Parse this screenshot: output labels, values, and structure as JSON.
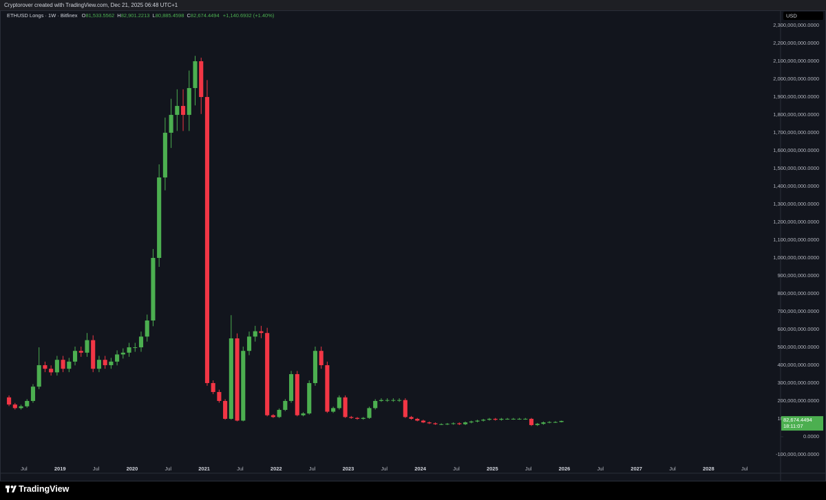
{
  "header": {
    "author_line": "Cryptorover created with TradingView.com, Dec 21, 2025 06:48 UTC+1"
  },
  "footer": {
    "brand": "TradingView"
  },
  "chart_data": {
    "type": "candlestick",
    "title": "ETHUSD Longs · 1W · Bitfinex",
    "ohlc_legend": {
      "o_key": "O",
      "o": "81,533.5562",
      "h_key": "H",
      "h": "82,901.2213",
      "l_key": "L",
      "l": "80,885.4598",
      "c_key": "C",
      "c": "82,674.4494",
      "change": "+1,140.6932 (+1.40%)"
    },
    "currency": "USD",
    "last_price_label": "82,674.4494",
    "countdown": "18:11:07",
    "up_color": "#4caf50",
    "down_color": "#f23645",
    "grid": false,
    "x": [
      "2018-04",
      "2018-05",
      "2018-06",
      "2018-07",
      "2018-08",
      "2018-09",
      "2018-10",
      "2018-11",
      "2018-12",
      "2019-01",
      "2019-02",
      "2019-03",
      "2019-04",
      "2019-05",
      "2019-06",
      "2019-07",
      "2019-08",
      "2019-09",
      "2019-10",
      "2019-11",
      "2019-12",
      "2020-01",
      "2020-02",
      "2020-03",
      "2020-04",
      "2020-05",
      "2020-06",
      "2020-07",
      "2020-08",
      "2020-09",
      "2020-10",
      "2020-11",
      "2020-12",
      "2021-01",
      "2021-02",
      "2021-03",
      "2021-04",
      "2021-05",
      "2021-06",
      "2021-07",
      "2021-08",
      "2021-09",
      "2021-10",
      "2021-11",
      "2021-12",
      "2022-01",
      "2022-02",
      "2022-03",
      "2022-04",
      "2022-05",
      "2022-06",
      "2022-07",
      "2022-08",
      "2022-09",
      "2022-10",
      "2022-11",
      "2022-12",
      "2023-01",
      "2023-02",
      "2023-03",
      "2023-04",
      "2023-05",
      "2023-06",
      "2023-07",
      "2023-08",
      "2023-09",
      "2023-10",
      "2023-11",
      "2023-12",
      "2024-01",
      "2024-02",
      "2024-03",
      "2024-04",
      "2024-05",
      "2024-06",
      "2024-07",
      "2024-08",
      "2024-09",
      "2024-10",
      "2024-11",
      "2024-12",
      "2025-01",
      "2025-02",
      "2025-03",
      "2025-04",
      "2025-05",
      "2025-06",
      "2025-07",
      "2025-08",
      "2025-09",
      "2025-10",
      "2025-11",
      "2025-12"
    ],
    "open": [
      220000000.0,
      180000000.0,
      160000000.0,
      170000000.0,
      200000000.0,
      280000000.0,
      400000000.0,
      380000000.0,
      360000000.0,
      430000000.0,
      380000000.0,
      420000000.0,
      480000000.0,
      470000000.0,
      540000000.0,
      380000000.0,
      430000000.0,
      400000000.0,
      420000000.0,
      460000000.0,
      470000000.0,
      500000000.0,
      500000000.0,
      560000000.0,
      650000000.0,
      1000000000.0,
      1450000000.0,
      1700000000.0,
      1800000000.0,
      1850000000.0,
      1800000000.0,
      1950000000.0,
      2100000000.0,
      1900000000.0,
      300000000.0,
      250000000.0,
      200000000.0,
      100000000.0,
      550000000.0,
      90000000.0,
      480000000.0,
      560000000.0,
      590000000.0,
      580000000.0,
      120000000.0,
      110000000.0,
      150000000.0,
      200000000.0,
      350000000.0,
      120000000.0,
      130000000.0,
      300000000.0,
      480000000.0,
      400000000.0,
      140000000.0,
      160000000.0,
      220000000.0,
      110000000.0,
      105000000.0,
      100000000.0,
      105000000.0,
      160000000.0,
      200000000.0,
      205000000.0,
      205000000.0,
      205000000.0,
      205000000.0,
      110000000.0,
      100000000.0,
      90000000.0,
      80000000.0,
      75000000.0,
      70000000.0,
      70000000.0,
      72000000.0,
      75000000.0,
      70000000.0,
      80000000.0,
      85000000.0,
      90000000.0,
      95000000.0,
      100000000.0,
      95000000.0,
      100000000.0,
      100000000.0,
      100000000.0,
      100000000.0,
      100000000.0,
      65000000.0,
      72000000.0,
      80000000.0,
      82000000.0,
      82000000.0
    ],
    "high": [
      231000000.0,
      189000000.0,
      179000000.0,
      210000000.0,
      294000000.0,
      500000000.0,
      420000000.0,
      399000000.0,
      452000000.0,
      452000000.0,
      441000000.0,
      504000000.0,
      504000000.0,
      580000000.0,
      567000000.0,
      452000000.0,
      452000000.0,
      441000000.0,
      483000000.0,
      494000000.0,
      525000000.0,
      525000000.0,
      588000000.0,
      683000000.0,
      1050000000.0,
      1523000000.0,
      1785000000.0,
      1890000000.0,
      1943000000.0,
      1943000000.0,
      2048000000.0,
      2130000000.0,
      2120000000.0,
      1995000000.0,
      315000000.0,
      263000000.0,
      210000000.0,
      680000000.0,
      578000000.0,
      504000000.0,
      588000000.0,
      620000000.0,
      620000000.0,
      609000000.0,
      126000000.0,
      158000000.0,
      210000000.0,
      368000000.0,
      368000000.0,
      137000000.0,
      315000000.0,
      504000000.0,
      504000000.0,
      420000000.0,
      168000000.0,
      231000000.0,
      231000000.0,
      116000000.0,
      110000000.0,
      110000000.0,
      168000000.0,
      210000000.0,
      215000000.0,
      215000000.0,
      215000000.0,
      215000000.0,
      215000000.0,
      116000000.0,
      105000000.0,
      95000000.0,
      85000000.0,
      80000000.0,
      75000000.0,
      77000000.0,
      80000000.0,
      80000000.0,
      85000000.0,
      90000000.0,
      95000000.0,
      100000000.0,
      105000000.0,
      105000000.0,
      105000000.0,
      105000000.0,
      105000000.0,
      105000000.0,
      105000000.0,
      105000000.0,
      77000000.0,
      85000000.0,
      87000000.0,
      87000000.0,
      90000000.0
    ],
    "low": [
      171000000.0,
      152000000.0,
      152000000.0,
      162000000.0,
      190000000.0,
      266000000.0,
      361000000.0,
      342000000.0,
      342000000.0,
      361000000.0,
      361000000.0,
      399000000.0,
      447000000.0,
      447000000.0,
      361000000.0,
      361000000.0,
      380000000.0,
      380000000.0,
      399000000.0,
      437000000.0,
      447000000.0,
      475000000.0,
      475000000.0,
      532000000.0,
      618000000.0,
      950000000.0,
      1378000000.0,
      1615000000.0,
      1710000000.0,
      1710000000.0,
      1710000000.0,
      1853000000.0,
      1805000000.0,
      285000000.0,
      238000000.0,
      190000000.0,
      95000000.0,
      95000000.0,
      86000000.0,
      86000000.0,
      456000000.0,
      532000000.0,
      551000000.0,
      114000000.0,
      105000000.0,
      105000000.0,
      143000000.0,
      190000000.0,
      114000000.0,
      114000000.0,
      124000000.0,
      285000000.0,
      380000000.0,
      133000000.0,
      133000000.0,
      152000000.0,
      105000000.0,
      100000000.0,
      95000000.0,
      95000000.0,
      100000000.0,
      152000000.0,
      195000000.0,
      195000000.0,
      195000000.0,
      195000000.0,
      105000000.0,
      95000000.0,
      86000000.0,
      76000000.0,
      71000000.0,
      66000000.0,
      65000000.0,
      65000000.0,
      67000000.0,
      65000000.0,
      65000000.0,
      75000000.0,
      80000000.0,
      85000000.0,
      90000000.0,
      90000000.0,
      90000000.0,
      95000000.0,
      95000000.0,
      95000000.0,
      95000000.0,
      60000000.0,
      60000000.0,
      67000000.0,
      75000000.0,
      77000000.0,
      80000000.0
    ],
    "close": [
      180000000.0,
      160000000.0,
      170000000.0,
      200000000.0,
      280000000.0,
      400000000.0,
      380000000.0,
      360000000.0,
      430000000.0,
      380000000.0,
      420000000.0,
      480000000.0,
      470000000.0,
      540000000.0,
      380000000.0,
      430000000.0,
      400000000.0,
      420000000.0,
      460000000.0,
      470000000.0,
      500000000.0,
      500000000.0,
      560000000.0,
      650000000.0,
      1000000000.0,
      1450000000.0,
      1700000000.0,
      1800000000.0,
      1850000000.0,
      1800000000.0,
      1950000000.0,
      2100000000.0,
      1900000000.0,
      300000000.0,
      250000000.0,
      200000000.0,
      100000000.0,
      550000000.0,
      90000000.0,
      480000000.0,
      560000000.0,
      590000000.0,
      580000000.0,
      120000000.0,
      110000000.0,
      150000000.0,
      200000000.0,
      350000000.0,
      120000000.0,
      130000000.0,
      300000000.0,
      480000000.0,
      400000000.0,
      140000000.0,
      160000000.0,
      220000000.0,
      110000000.0,
      105000000.0,
      100000000.0,
      105000000.0,
      160000000.0,
      200000000.0,
      205000000.0,
      205000000.0,
      205000000.0,
      205000000.0,
      110000000.0,
      100000000.0,
      90000000.0,
      80000000.0,
      75000000.0,
      70000000.0,
      70000000.0,
      72000000.0,
      75000000.0,
      70000000.0,
      80000000.0,
      85000000.0,
      90000000.0,
      95000000.0,
      100000000.0,
      95000000.0,
      100000000.0,
      100000000.0,
      100000000.0,
      100000000.0,
      100000000.0,
      65000000.0,
      72000000.0,
      80000000.0,
      82000000.0,
      82000000.0,
      88000000.0
    ],
    "xlim": [
      "2018-03",
      "2029-01"
    ],
    "xticks": [
      {
        "value": "2018-07",
        "label": "Jul"
      },
      {
        "value": "2019-01",
        "label": "2019"
      },
      {
        "value": "2019-07",
        "label": "Jul"
      },
      {
        "value": "2020-01",
        "label": "2020"
      },
      {
        "value": "2020-07",
        "label": "Jul"
      },
      {
        "value": "2021-01",
        "label": "2021"
      },
      {
        "value": "2021-07",
        "label": "Jul"
      },
      {
        "value": "2022-01",
        "label": "2022"
      },
      {
        "value": "2022-07",
        "label": "Jul"
      },
      {
        "value": "2023-01",
        "label": "2023"
      },
      {
        "value": "2023-07",
        "label": "Jul"
      },
      {
        "value": "2024-01",
        "label": "2024"
      },
      {
        "value": "2024-07",
        "label": "Jul"
      },
      {
        "value": "2025-01",
        "label": "2025"
      },
      {
        "value": "2025-07",
        "label": "Jul"
      },
      {
        "value": "2026-01",
        "label": "2026"
      },
      {
        "value": "2026-07",
        "label": "Jul"
      },
      {
        "value": "2027-01",
        "label": "2027"
      },
      {
        "value": "2027-07",
        "label": "Jul"
      },
      {
        "value": "2028-01",
        "label": "2028"
      },
      {
        "value": "2028-07",
        "label": "Jul"
      }
    ],
    "ylim": [
      -204000000.0,
      2381000000.0
    ],
    "yticks": [
      {
        "value": -100000000.0,
        "label": "-100,000,000.0000"
      },
      {
        "value": 0,
        "label": "0.0000"
      },
      {
        "value": 100000000.0,
        "label": "100,000,000.0000"
      },
      {
        "value": 200000000.0,
        "label": "200,000,000.0000"
      },
      {
        "value": 300000000.0,
        "label": "300,000,000.0000"
      },
      {
        "value": 400000000.0,
        "label": "400,000,000.0000"
      },
      {
        "value": 500000000.0,
        "label": "500,000,000.0000"
      },
      {
        "value": 600000000.0,
        "label": "600,000,000.0000"
      },
      {
        "value": 700000000.0,
        "label": "700,000,000.0000"
      },
      {
        "value": 800000000.0,
        "label": "800,000,000.0000"
      },
      {
        "value": 900000000.0,
        "label": "900,000,000.0000"
      },
      {
        "value": 1000000000.0,
        "label": "1,000,000,000.0000"
      },
      {
        "value": 1100000000.0,
        "label": "1,100,000,000.0000"
      },
      {
        "value": 1200000000.0,
        "label": "1,200,000,000.0000"
      },
      {
        "value": 1300000000.0,
        "label": "1,300,000,000.0000"
      },
      {
        "value": 1400000000.0,
        "label": "1,400,000,000.0000"
      },
      {
        "value": 1500000000.0,
        "label": "1,500,000,000.0000"
      },
      {
        "value": 1600000000.0,
        "label": "1,600,000,000.0000"
      },
      {
        "value": 1700000000.0,
        "label": "1,700,000,000.0000"
      },
      {
        "value": 1800000000.0,
        "label": "1,800,000,000.0000"
      },
      {
        "value": 1900000000.0,
        "label": "1,900,000,000.0000"
      },
      {
        "value": 2000000000.0,
        "label": "2,000,000,000.0000"
      },
      {
        "value": 2100000000.0,
        "label": "2,100,000,000.0000"
      },
      {
        "value": 2200000000.0,
        "label": "2,200,000,000.0000"
      },
      {
        "value": 2300000000.0,
        "label": "2,300,000,000.0000"
      }
    ]
  }
}
